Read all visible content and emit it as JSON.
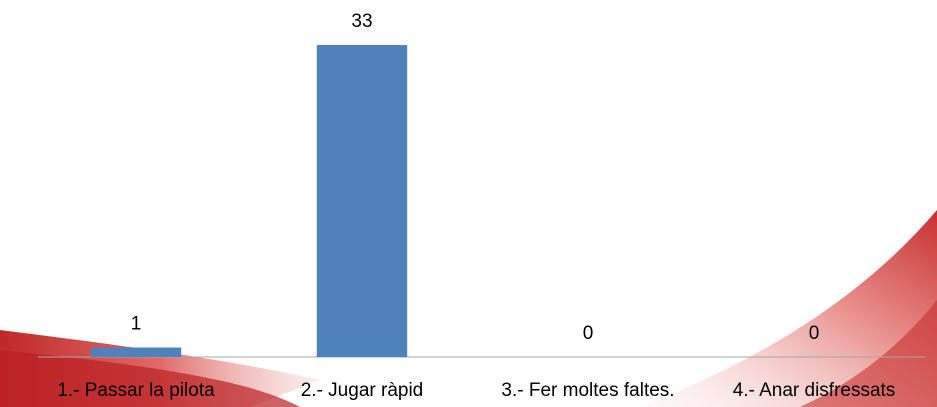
{
  "chart_data": {
    "type": "bar",
    "categories": [
      "1.- Passar la pilota",
      "2.- Jugar ràpid",
      "3.- Fer moltes faltes.",
      "4.- Anar disfressats"
    ],
    "values": [
      1,
      33,
      0,
      0
    ],
    "color": "#4f81bd"
  }
}
